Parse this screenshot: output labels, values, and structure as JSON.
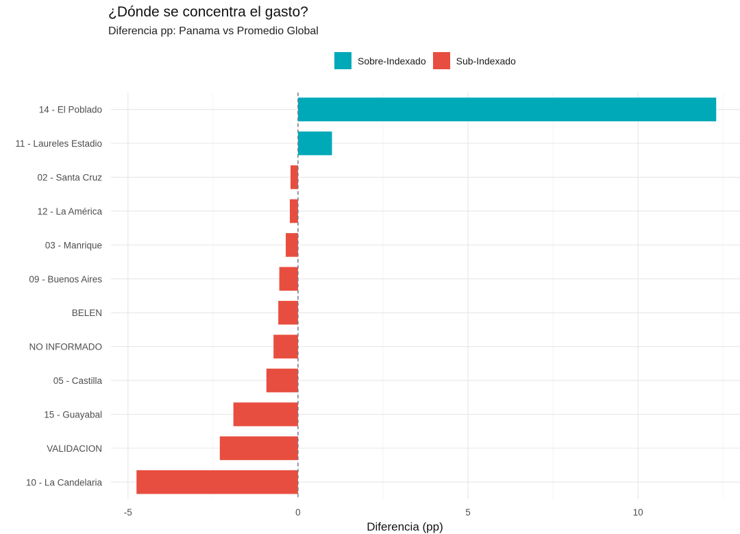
{
  "chart_data": {
    "type": "bar",
    "orientation": "horizontal",
    "title": "¿Dónde se concentra el gasto?",
    "subtitle": "Diferencia pp: Panama vs Promedio Global",
    "xlabel": "Diferencia (pp)",
    "ylabel": "",
    "xlim": [
      -5.5,
      13
    ],
    "xticks": [
      -5,
      0,
      5,
      10
    ],
    "grid": true,
    "reference_line": 0,
    "legend_position": "top",
    "legend": [
      {
        "name": "Sobre-Indexado",
        "color": "#00A9B8"
      },
      {
        "name": "Sub-Indexado",
        "color": "#E84E3F"
      }
    ],
    "categories": [
      "14 - El Poblado",
      "11 - Laureles Estadio",
      "02 - Santa Cruz",
      "12 - La América",
      "03 - Manrique",
      "09 - Buenos Aires",
      "BELEN",
      "NO INFORMADO",
      "05 - Castilla",
      "15 - Guayabal",
      "VALIDACION",
      "10 - La Candelaria"
    ],
    "values": [
      12.3,
      1.0,
      -0.22,
      -0.24,
      -0.36,
      -0.55,
      -0.58,
      -0.72,
      -0.93,
      -1.9,
      -2.3,
      -4.75
    ]
  }
}
